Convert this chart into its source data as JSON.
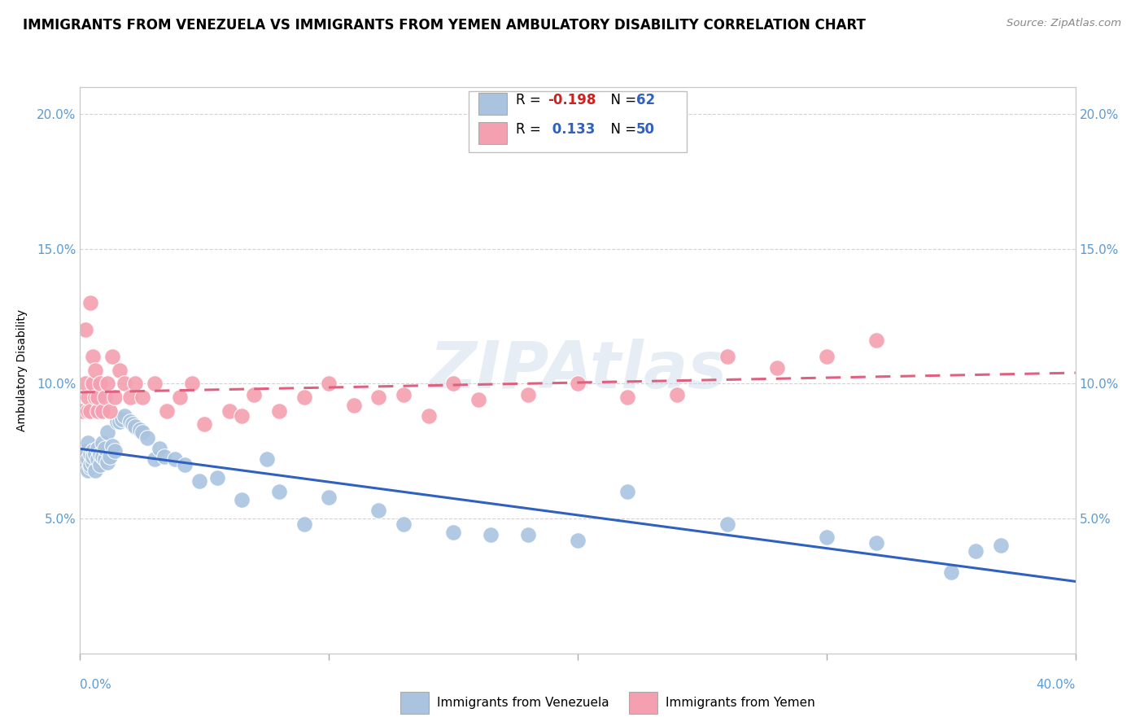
{
  "title": "IMMIGRANTS FROM VENEZUELA VS IMMIGRANTS FROM YEMEN AMBULATORY DISABILITY CORRELATION CHART",
  "source": "Source: ZipAtlas.com",
  "ylabel": "Ambulatory Disability",
  "watermark": "ZIPAtlas",
  "legend_label1": "Immigrants from Venezuela",
  "legend_label2": "Immigrants from Yemen",
  "xlim": [
    0.0,
    0.4
  ],
  "ylim": [
    0.0,
    0.21
  ],
  "yticks": [
    0.05,
    0.1,
    0.15,
    0.2
  ],
  "ytick_labels": [
    "5.0%",
    "10.0%",
    "15.0%",
    "20.0%"
  ],
  "venezuela_color": "#aac4e0",
  "yemen_color": "#f4a0b0",
  "venezuela_line_color": "#3060c0",
  "yemen_line_color": "#e06080",
  "tick_color": "#5b9bd5",
  "grid_color": "#c8c8c8",
  "title_fontsize": 12,
  "axis_label_fontsize": 10,
  "tick_fontsize": 11,
  "venezuela_R": -0.198,
  "venezuela_N": 62,
  "yemen_R": 0.133,
  "yemen_N": 50,
  "ven_x": [
    0.001,
    0.002,
    0.002,
    0.003,
    0.003,
    0.003,
    0.004,
    0.004,
    0.004,
    0.005,
    0.005,
    0.005,
    0.006,
    0.006,
    0.007,
    0.007,
    0.008,
    0.008,
    0.009,
    0.009,
    0.01,
    0.01,
    0.011,
    0.011,
    0.012,
    0.013,
    0.014,
    0.015,
    0.016,
    0.017,
    0.018,
    0.02,
    0.021,
    0.022,
    0.024,
    0.025,
    0.027,
    0.03,
    0.032,
    0.034,
    0.038,
    0.042,
    0.048,
    0.055,
    0.065,
    0.075,
    0.08,
    0.09,
    0.1,
    0.12,
    0.13,
    0.15,
    0.165,
    0.18,
    0.2,
    0.22,
    0.26,
    0.3,
    0.32,
    0.35,
    0.36,
    0.37
  ],
  "ven_y": [
    0.072,
    0.07,
    0.075,
    0.068,
    0.072,
    0.078,
    0.069,
    0.074,
    0.07,
    0.071,
    0.075,
    0.073,
    0.068,
    0.074,
    0.072,
    0.076,
    0.07,
    0.074,
    0.073,
    0.078,
    0.072,
    0.076,
    0.071,
    0.082,
    0.073,
    0.077,
    0.075,
    0.086,
    0.086,
    0.087,
    0.088,
    0.086,
    0.085,
    0.084,
    0.083,
    0.082,
    0.08,
    0.072,
    0.076,
    0.073,
    0.072,
    0.07,
    0.064,
    0.065,
    0.057,
    0.072,
    0.06,
    0.048,
    0.058,
    0.053,
    0.048,
    0.045,
    0.044,
    0.044,
    0.042,
    0.06,
    0.048,
    0.043,
    0.041,
    0.03,
    0.038,
    0.04
  ],
  "yem_x": [
    0.001,
    0.002,
    0.002,
    0.003,
    0.003,
    0.004,
    0.004,
    0.005,
    0.005,
    0.006,
    0.006,
    0.007,
    0.007,
    0.008,
    0.009,
    0.01,
    0.011,
    0.012,
    0.013,
    0.014,
    0.016,
    0.018,
    0.02,
    0.022,
    0.025,
    0.03,
    0.035,
    0.04,
    0.045,
    0.05,
    0.06,
    0.065,
    0.07,
    0.08,
    0.09,
    0.1,
    0.11,
    0.12,
    0.13,
    0.14,
    0.15,
    0.16,
    0.18,
    0.2,
    0.22,
    0.24,
    0.26,
    0.28,
    0.3,
    0.32
  ],
  "yem_y": [
    0.09,
    0.1,
    0.12,
    0.09,
    0.095,
    0.09,
    0.13,
    0.1,
    0.11,
    0.095,
    0.105,
    0.09,
    0.095,
    0.1,
    0.09,
    0.095,
    0.1,
    0.09,
    0.11,
    0.095,
    0.105,
    0.1,
    0.095,
    0.1,
    0.095,
    0.1,
    0.09,
    0.095,
    0.1,
    0.085,
    0.09,
    0.088,
    0.096,
    0.09,
    0.095,
    0.1,
    0.092,
    0.095,
    0.096,
    0.088,
    0.1,
    0.094,
    0.096,
    0.1,
    0.095,
    0.096,
    0.11,
    0.106,
    0.11,
    0.116
  ]
}
